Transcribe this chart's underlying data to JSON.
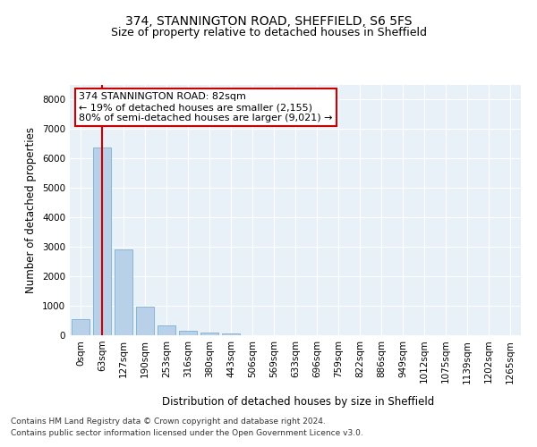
{
  "title1": "374, STANNINGTON ROAD, SHEFFIELD, S6 5FS",
  "title2": "Size of property relative to detached houses in Sheffield",
  "xlabel": "Distribution of detached houses by size in Sheffield",
  "ylabel": "Number of detached properties",
  "bar_color": "#b8d0e8",
  "bar_edge_color": "#7aaed4",
  "vline_color": "#cc0000",
  "vline_x": 1,
  "categories": [
    "0sqm",
    "63sqm",
    "127sqm",
    "190sqm",
    "253sqm",
    "316sqm",
    "380sqm",
    "443sqm",
    "506sqm",
    "569sqm",
    "633sqm",
    "696sqm",
    "759sqm",
    "822sqm",
    "886sqm",
    "949sqm",
    "1012sqm",
    "1075sqm",
    "1139sqm",
    "1202sqm",
    "1265sqm"
  ],
  "values": [
    560,
    6380,
    2920,
    975,
    330,
    140,
    90,
    65,
    0,
    0,
    0,
    0,
    0,
    0,
    0,
    0,
    0,
    0,
    0,
    0,
    0
  ],
  "ylim": [
    0,
    8500
  ],
  "yticks": [
    0,
    1000,
    2000,
    3000,
    4000,
    5000,
    6000,
    7000,
    8000
  ],
  "annotation_line1": "374 STANNINGTON ROAD: 82sqm",
  "annotation_line2": "← 19% of detached houses are smaller (2,155)",
  "annotation_line3": "80% of semi-detached houses are larger (9,021) →",
  "annotation_box_color": "#ffffff",
  "annotation_box_edge_color": "#cc0000",
  "footnote1": "Contains HM Land Registry data © Crown copyright and database right 2024.",
  "footnote2": "Contains public sector information licensed under the Open Government Licence v3.0.",
  "bg_color": "#e8f0f8",
  "grid_color": "#ffffff",
  "title1_fontsize": 10,
  "title2_fontsize": 9,
  "axis_label_fontsize": 8.5,
  "tick_fontsize": 7.5,
  "annotation_fontsize": 8,
  "footnote_fontsize": 6.5
}
